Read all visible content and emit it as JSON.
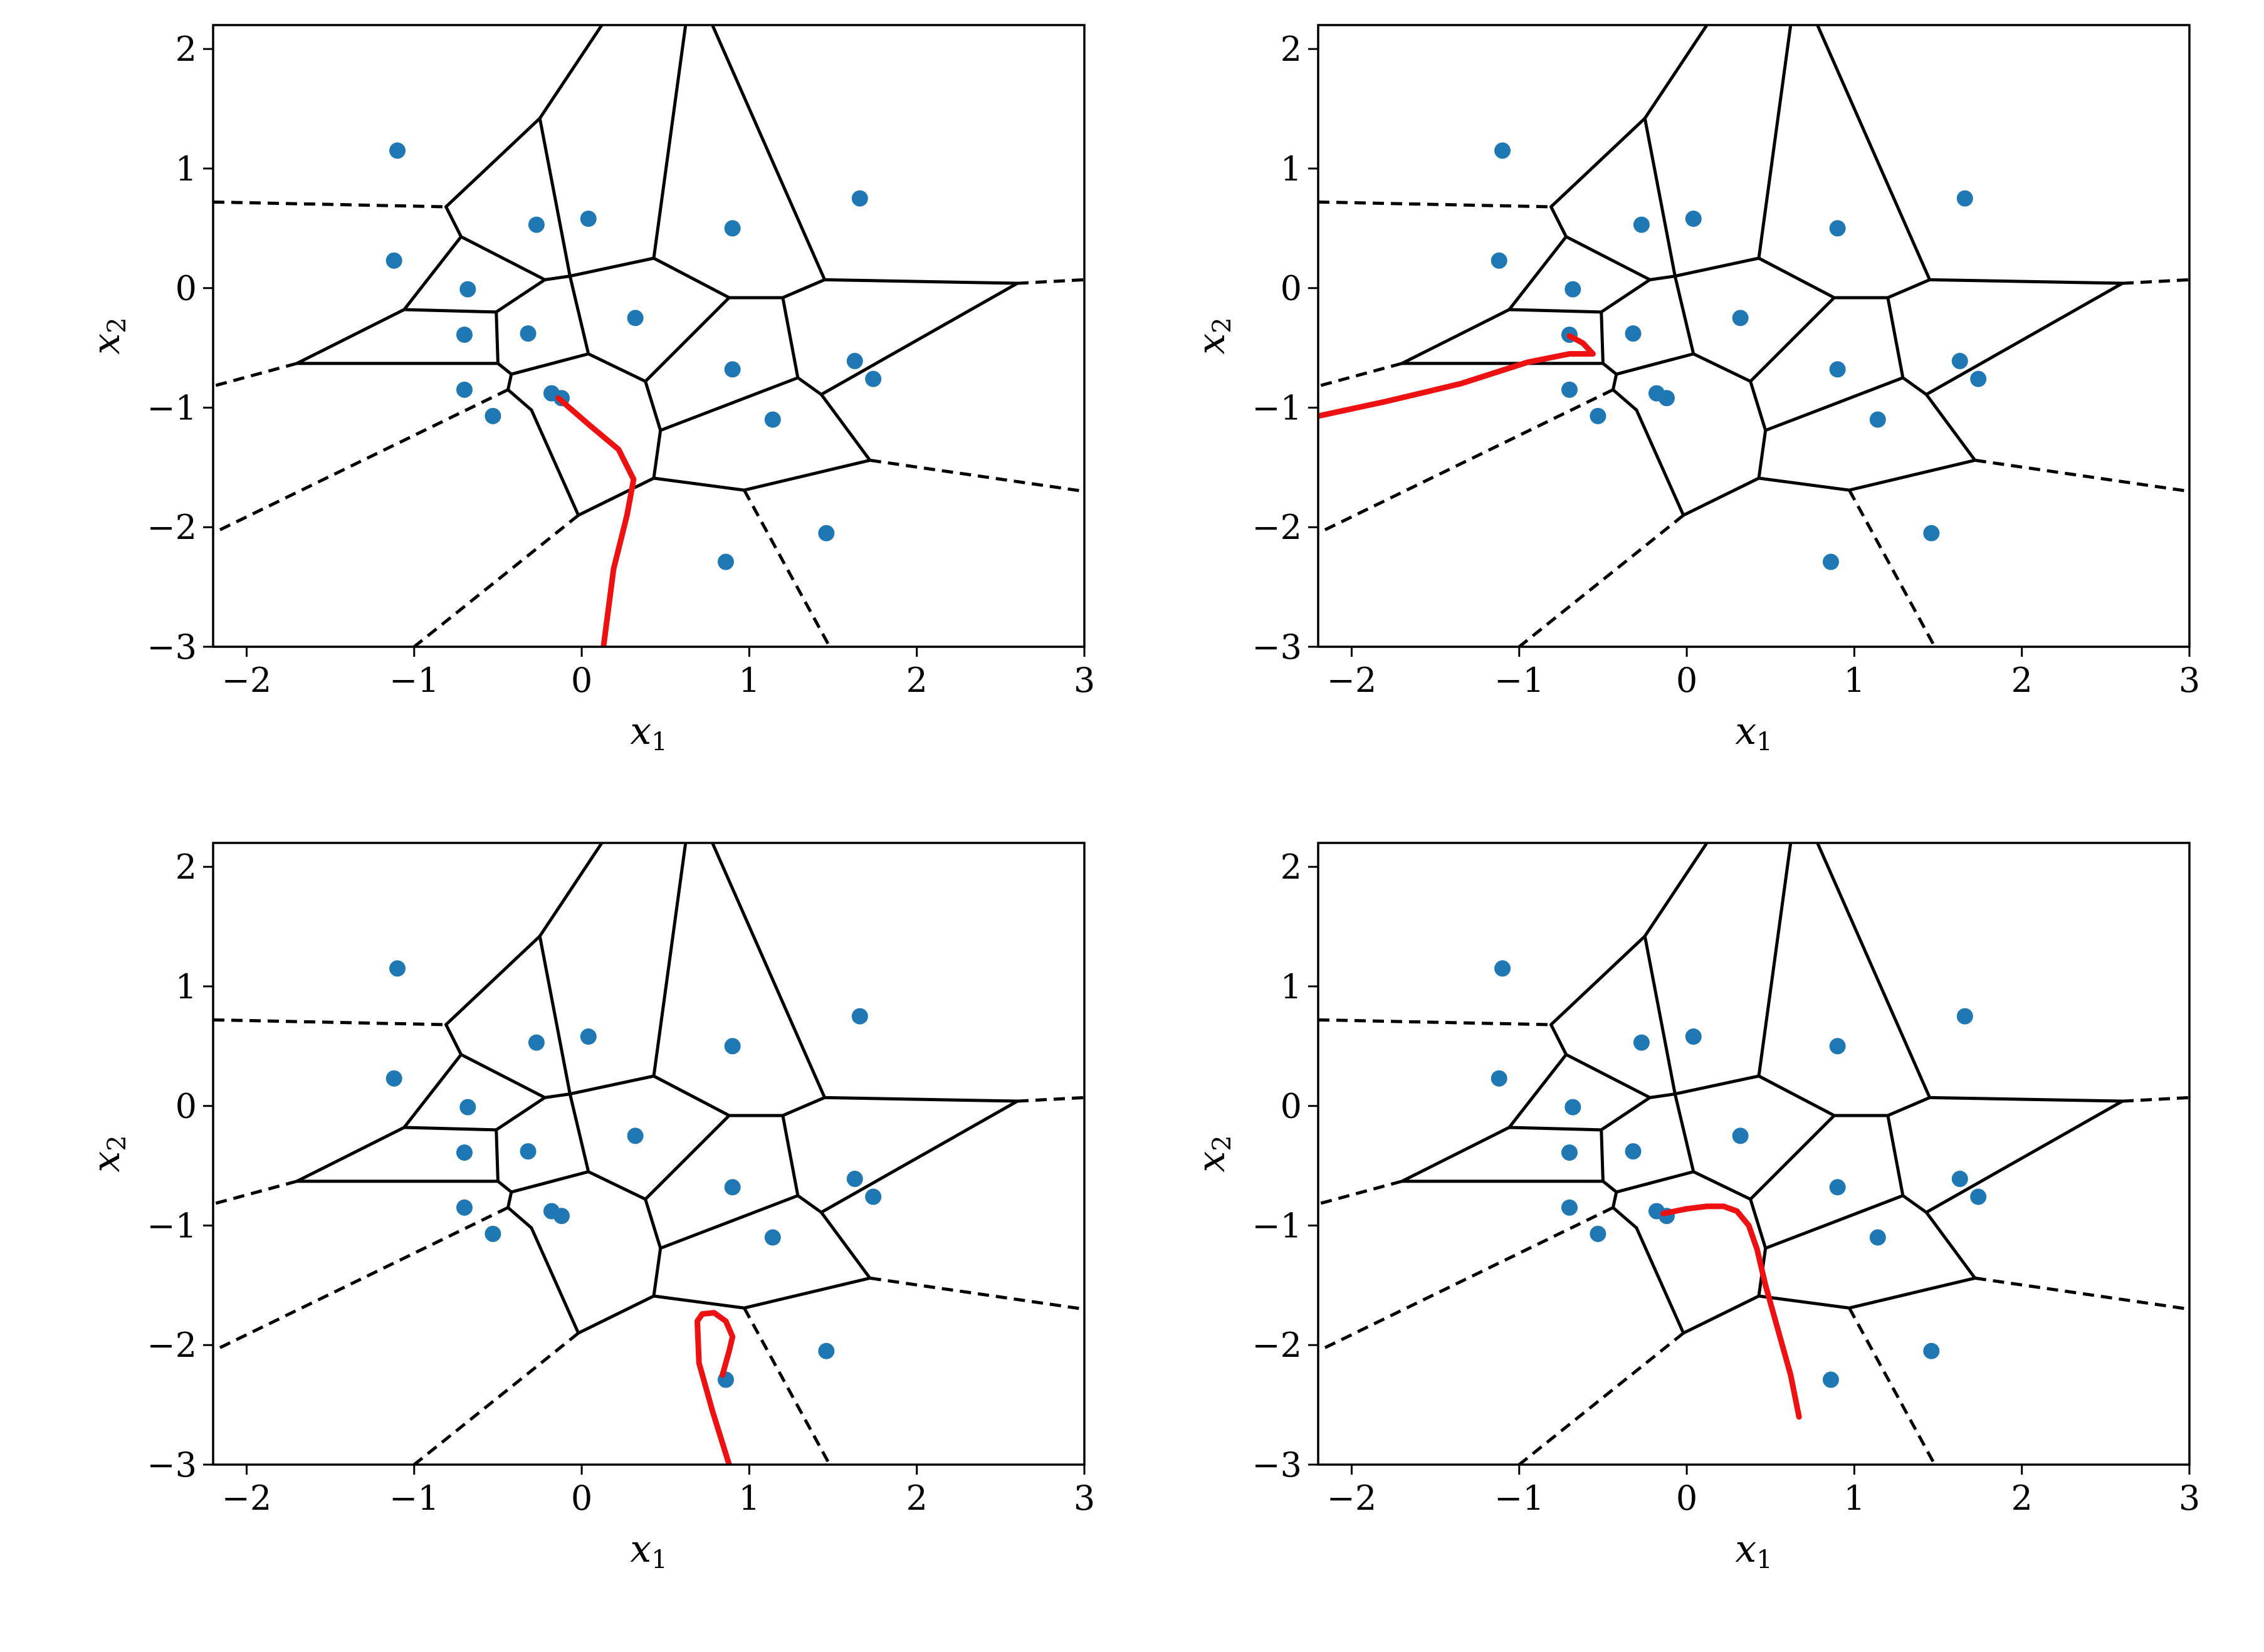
{
  "chart_data": [
    {
      "type": "scatter",
      "panel": "top-left",
      "xlabel": "x",
      "xlabel_sub": "1",
      "ylabel": "x",
      "ylabel_sub": "2",
      "xlim": [
        -2.2,
        3
      ],
      "ylim": [
        -3,
        2.2
      ],
      "xticks": [
        -2,
        -1,
        0,
        1,
        2,
        3
      ],
      "xtick_labels": [
        "−2",
        "−1",
        "0",
        "1",
        "2",
        "3"
      ],
      "yticks": [
        -3,
        -2,
        -1,
        0,
        1,
        2
      ],
      "ytick_labels": [
        "−3",
        "−2",
        "−1",
        "0",
        "1",
        "2"
      ],
      "trajectory": [
        [
          -0.14,
          -0.92
        ],
        [
          0.05,
          -1.15
        ],
        [
          0.22,
          -1.35
        ],
        [
          0.31,
          -1.6
        ],
        [
          0.27,
          -1.9
        ],
        [
          0.19,
          -2.35
        ],
        [
          0.13,
          -3.0
        ]
      ]
    },
    {
      "type": "scatter",
      "panel": "top-right",
      "xlabel": "x",
      "xlabel_sub": "1",
      "ylabel": "x",
      "ylabel_sub": "2",
      "xlim": [
        -2.2,
        3
      ],
      "ylim": [
        -3,
        2.2
      ],
      "xticks": [
        -2,
        -1,
        0,
        1,
        2,
        3
      ],
      "xtick_labels": [
        "−2",
        "−1",
        "0",
        "1",
        "2",
        "3"
      ],
      "yticks": [
        -3,
        -2,
        -1,
        0,
        1,
        2
      ],
      "ytick_labels": [
        "−3",
        "−2",
        "−1",
        "0",
        "1",
        "2"
      ],
      "trajectory": [
        [
          -0.7,
          -0.4
        ],
        [
          -0.62,
          -0.46
        ],
        [
          -0.56,
          -0.55
        ],
        [
          -0.7,
          -0.55
        ],
        [
          -0.95,
          -0.62
        ],
        [
          -1.35,
          -0.8
        ],
        [
          -1.8,
          -0.95
        ],
        [
          -2.2,
          -1.07
        ]
      ]
    },
    {
      "type": "scatter",
      "panel": "bottom-left",
      "xlabel": "x",
      "xlabel_sub": "1",
      "ylabel": "x",
      "ylabel_sub": "2",
      "xlim": [
        -2.2,
        3
      ],
      "ylim": [
        -3,
        2.2
      ],
      "xticks": [
        -2,
        -1,
        0,
        1,
        2,
        3
      ],
      "xtick_labels": [
        "−2",
        "−1",
        "0",
        "1",
        "2",
        "3"
      ],
      "yticks": [
        -3,
        -2,
        -1,
        0,
        1,
        2
      ],
      "ytick_labels": [
        "−3",
        "−2",
        "−1",
        "0",
        "1",
        "2"
      ],
      "trajectory": [
        [
          0.84,
          -2.25
        ],
        [
          0.88,
          -2.05
        ],
        [
          0.9,
          -1.93
        ],
        [
          0.86,
          -1.8
        ],
        [
          0.79,
          -1.73
        ],
        [
          0.72,
          -1.74
        ],
        [
          0.69,
          -1.8
        ],
        [
          0.7,
          -2.15
        ],
        [
          0.78,
          -2.55
        ],
        [
          0.88,
          -3.0
        ]
      ]
    },
    {
      "type": "scatter",
      "panel": "bottom-right",
      "xlabel": "x",
      "xlabel_sub": "1",
      "ylabel": "x",
      "ylabel_sub": "2",
      "xlim": [
        -2.2,
        3
      ],
      "ylim": [
        -3,
        2.2
      ],
      "xticks": [
        -2,
        -1,
        0,
        1,
        2,
        3
      ],
      "xtick_labels": [
        "−2",
        "−1",
        "0",
        "1",
        "2",
        "3"
      ],
      "yticks": [
        -3,
        -2,
        -1,
        0,
        1,
        2
      ],
      "ytick_labels": [
        "−3",
        "−2",
        "−1",
        "0",
        "1",
        "2"
      ],
      "trajectory": [
        [
          -0.14,
          -0.9
        ],
        [
          0.0,
          -0.86
        ],
        [
          0.12,
          -0.84
        ],
        [
          0.22,
          -0.84
        ],
        [
          0.3,
          -0.88
        ],
        [
          0.37,
          -1.0
        ],
        [
          0.42,
          -1.2
        ],
        [
          0.47,
          -1.5
        ],
        [
          0.55,
          -1.9
        ],
        [
          0.62,
          -2.25
        ],
        [
          0.67,
          -2.6
        ]
      ]
    }
  ],
  "shared": {
    "points": [
      [
        -1.1,
        1.15
      ],
      [
        -1.12,
        0.23
      ],
      [
        -0.68,
        -0.01
      ],
      [
        -0.7,
        -0.39
      ],
      [
        -0.7,
        -0.85
      ],
      [
        -0.53,
        -1.07
      ],
      [
        -0.27,
        0.53
      ],
      [
        0.04,
        0.58
      ],
      [
        -0.32,
        -0.38
      ],
      [
        -0.18,
        -0.88
      ],
      [
        -0.12,
        -0.92
      ],
      [
        0.32,
        -0.25
      ],
      [
        0.9,
        0.5
      ],
      [
        0.9,
        -0.68
      ],
      [
        1.66,
        0.75
      ],
      [
        1.63,
        -0.61
      ],
      [
        1.74,
        -0.76
      ],
      [
        1.14,
        -1.1
      ],
      [
        0.86,
        -2.29
      ],
      [
        1.46,
        -2.05
      ]
    ],
    "solid_edges": [
      [
        [
          0.12,
          2.2
        ],
        [
          -0.25,
          1.42
        ]
      ],
      [
        [
          -0.25,
          1.42
        ],
        [
          -0.81,
          0.68
        ]
      ],
      [
        [
          -0.81,
          0.68
        ],
        [
          -0.72,
          0.43
        ]
      ],
      [
        [
          -0.72,
          0.43
        ],
        [
          -1.06,
          -0.18
        ]
      ],
      [
        [
          -1.06,
          -0.18
        ],
        [
          -1.7,
          -0.63
        ]
      ],
      [
        [
          -1.7,
          -0.63
        ],
        [
          -0.5,
          -0.63
        ]
      ],
      [
        [
          -0.72,
          0.43
        ],
        [
          -0.22,
          0.07
        ]
      ],
      [
        [
          -0.25,
          1.42
        ],
        [
          -0.07,
          0.1
        ]
      ],
      [
        [
          -0.22,
          0.07
        ],
        [
          -0.07,
          0.1
        ]
      ],
      [
        [
          -0.22,
          0.07
        ],
        [
          -0.51,
          -0.2
        ]
      ],
      [
        [
          -1.06,
          -0.18
        ],
        [
          -0.51,
          -0.2
        ]
      ],
      [
        [
          -0.51,
          -0.2
        ],
        [
          -0.5,
          -0.63
        ]
      ],
      [
        [
          -0.5,
          -0.63
        ],
        [
          -0.42,
          -0.72
        ]
      ],
      [
        [
          -0.42,
          -0.72
        ],
        [
          -0.44,
          -0.85
        ]
      ],
      [
        [
          -0.44,
          -0.85
        ],
        [
          -0.3,
          -1.02
        ]
      ],
      [
        [
          -0.3,
          -1.02
        ],
        [
          -0.02,
          -1.9
        ]
      ],
      [
        [
          -0.42,
          -0.72
        ],
        [
          0.04,
          -0.55
        ]
      ],
      [
        [
          -0.07,
          0.1
        ],
        [
          0.04,
          -0.55
        ]
      ],
      [
        [
          -0.07,
          0.1
        ],
        [
          0.43,
          0.25
        ]
      ],
      [
        [
          0.04,
          -0.55
        ],
        [
          0.38,
          -0.78
        ]
      ],
      [
        [
          0.43,
          0.25
        ],
        [
          0.62,
          2.2
        ]
      ],
      [
        [
          0.43,
          0.25
        ],
        [
          0.88,
          -0.08
        ]
      ],
      [
        [
          0.88,
          -0.08
        ],
        [
          1.2,
          -0.08
        ]
      ],
      [
        [
          0.88,
          -0.08
        ],
        [
          0.38,
          -0.78
        ]
      ],
      [
        [
          0.38,
          -0.78
        ],
        [
          0.47,
          -1.19
        ]
      ],
      [
        [
          0.47,
          -1.19
        ],
        [
          1.29,
          -0.75
        ]
      ],
      [
        [
          1.2,
          -0.08
        ],
        [
          1.29,
          -0.75
        ]
      ],
      [
        [
          1.2,
          -0.08
        ],
        [
          1.45,
          0.07
        ]
      ],
      [
        [
          1.45,
          0.07
        ],
        [
          0.78,
          2.2
        ]
      ],
      [
        [
          1.45,
          0.07
        ],
        [
          2.6,
          0.04
        ]
      ],
      [
        [
          2.6,
          0.04
        ],
        [
          1.43,
          -0.89
        ]
      ],
      [
        [
          1.29,
          -0.75
        ],
        [
          1.43,
          -0.89
        ]
      ],
      [
        [
          1.43,
          -0.89
        ],
        [
          1.72,
          -1.44
        ]
      ],
      [
        [
          1.72,
          -1.44
        ],
        [
          0.97,
          -1.69
        ]
      ],
      [
        [
          0.97,
          -1.69
        ],
        [
          0.43,
          -1.59
        ]
      ],
      [
        [
          0.47,
          -1.19
        ],
        [
          0.43,
          -1.59
        ]
      ],
      [
        [
          0.43,
          -1.59
        ],
        [
          -0.02,
          -1.9
        ]
      ]
    ],
    "dashed_edges": [
      [
        [
          -2.2,
          0.72
        ],
        [
          -0.81,
          0.68
        ]
      ],
      [
        [
          -1.7,
          -0.63
        ],
        [
          -2.2,
          -0.82
        ]
      ],
      [
        [
          -0.44,
          -0.85
        ],
        [
          -2.2,
          -2.05
        ]
      ],
      [
        [
          -0.02,
          -1.9
        ],
        [
          -1.0,
          -3.0
        ]
      ],
      [
        [
          0.97,
          -1.69
        ],
        [
          1.48,
          -3.0
        ]
      ],
      [
        [
          1.72,
          -1.44
        ],
        [
          3.0,
          -1.7
        ]
      ],
      [
        [
          2.6,
          0.04
        ],
        [
          3.0,
          0.07
        ]
      ]
    ]
  },
  "colors": {
    "point": "#1f77b4",
    "trajectory": "#ee1111",
    "edge": "#000000"
  }
}
